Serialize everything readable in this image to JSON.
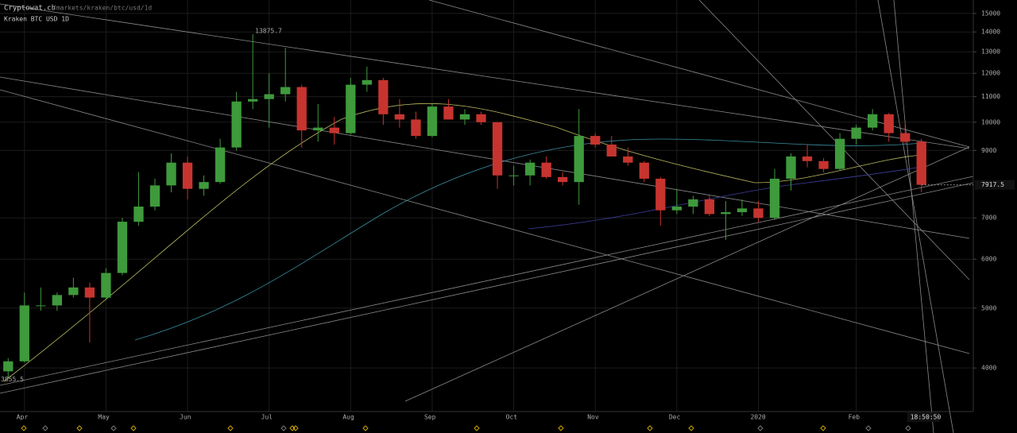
{
  "header": {
    "site": "Cryptowat.ch",
    "path": "/markets/kraken/btc/usd/1d"
  },
  "chart_data": {
    "type": "candlestick",
    "title": "Kraken BTC USD 1D",
    "categories": [
      null,
      "Apr",
      null,
      null,
      null,
      null,
      "May",
      null,
      null,
      null,
      null,
      "Jun",
      null,
      null,
      null,
      null,
      "Jul",
      null,
      null,
      null,
      null,
      "Aug",
      null,
      null,
      null,
      null,
      "Sep",
      null,
      null,
      null,
      null,
      "Oct",
      null,
      null,
      null,
      null,
      "Nov",
      null,
      null,
      null,
      null,
      "Dec",
      null,
      null,
      null,
      null,
      "2020",
      null,
      null,
      null,
      null,
      null,
      "Feb",
      null,
      null,
      null,
      null
    ],
    "open": [
      3950,
      4100,
      5050,
      5050,
      5250,
      5400,
      5200,
      5700,
      6900,
      7300,
      7900,
      8600,
      7800,
      8000,
      9100,
      10800,
      10900,
      11100,
      11400,
      9700,
      9800,
      9600,
      11500,
      11700,
      10300,
      10100,
      9500,
      10600,
      10100,
      10300,
      10000,
      8200,
      8200,
      8600,
      8150,
      8000,
      9500,
      9200,
      8800,
      8600,
      8100,
      7200,
      7300,
      7500,
      7100,
      7150,
      7250,
      7000,
      8100,
      8800,
      8650,
      8400,
      9400,
      9800,
      10300,
      9600,
      9300
    ],
    "high": [
      4150,
      5300,
      5400,
      5300,
      5600,
      5500,
      5800,
      7000,
      8300,
      8100,
      8900,
      8800,
      8200,
      9400,
      11200,
      13875.7,
      12000,
      13200,
      11500,
      10700,
      10200,
      11800,
      12300,
      11800,
      10900,
      10400,
      10700,
      10900,
      10500,
      10400,
      10000,
      8500,
      8700,
      8800,
      8300,
      10500,
      9600,
      9500,
      9100,
      8650,
      8150,
      7800,
      7600,
      7600,
      7450,
      7500,
      7450,
      8400,
      8900,
      9200,
      8750,
      9600,
      9900,
      10500,
      10350,
      9950,
      9400
    ],
    "low": [
      3855.5,
      4080,
      4950,
      4950,
      5200,
      4400,
      5150,
      5650,
      6800,
      7200,
      7700,
      7500,
      7600,
      7950,
      9000,
      10500,
      9800,
      10800,
      9100,
      9300,
      9200,
      9550,
      11200,
      9900,
      9800,
      9400,
      9450,
      10100,
      9900,
      9900,
      7800,
      7900,
      7900,
      8100,
      7900,
      7350,
      9100,
      8800,
      8500,
      8000,
      6800,
      7100,
      7100,
      7050,
      6450,
      7050,
      6900,
      6950,
      7750,
      8450,
      8300,
      8350,
      9200,
      9700,
      9300,
      9200,
      7700
    ],
    "close": [
      4100,
      5050,
      5050,
      5250,
      5400,
      5200,
      5700,
      6900,
      7300,
      7900,
      8600,
      7800,
      8000,
      9100,
      10800,
      10900,
      11100,
      11400,
      9700,
      9800,
      9600,
      11500,
      11700,
      10300,
      10100,
      9500,
      10600,
      10100,
      10300,
      10000,
      8200,
      8200,
      8600,
      8150,
      8000,
      9500,
      9200,
      8800,
      8600,
      8100,
      7200,
      7300,
      7500,
      7100,
      7150,
      7250,
      7000,
      8100,
      8800,
      8650,
      8400,
      9400,
      9800,
      10300,
      9600,
      9300,
      7917.5
    ],
    "up_color": "#3f9a3c",
    "down_color": "#c7342f",
    "ylim": [
      3400,
      15770
    ],
    "yticks": [
      4000,
      5000,
      6000,
      7000,
      9000,
      10000,
      11000,
      12000,
      13000,
      14000,
      15000
    ],
    "log_scale": true,
    "grid": true,
    "time_label": "18:50:50"
  }
}
